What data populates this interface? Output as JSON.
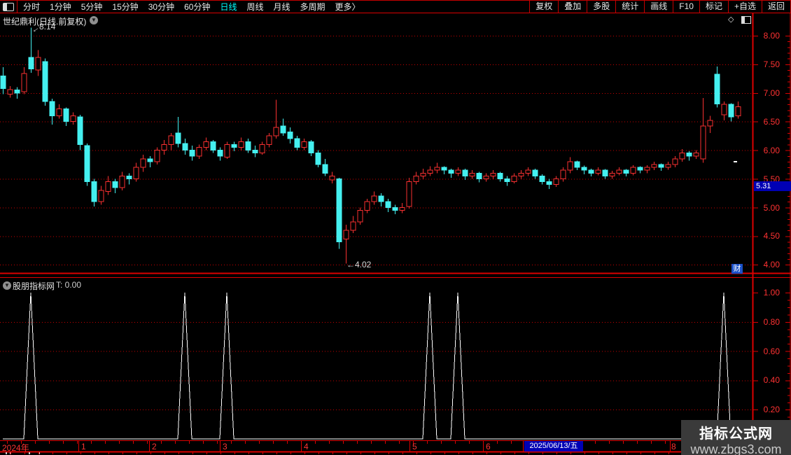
{
  "menubar": {
    "left_items": [
      "分时",
      "1分钟",
      "5分钟",
      "15分钟",
      "30分钟",
      "60分钟",
      "日线",
      "周线",
      "月线",
      "多周期",
      "更多〉"
    ],
    "active_item": "日线",
    "right_items": [
      "复权",
      "叠加",
      "多股",
      "统计",
      "画线",
      "F10",
      "标记",
      "+自选",
      "返回"
    ]
  },
  "chart_header": {
    "title": "世纪鼎利(日线.前复权)"
  },
  "price_axis": {
    "ticks": [
      "8.00",
      "7.50",
      "7.00",
      "6.50",
      "6.00",
      "5.50",
      "5.00",
      "4.50",
      "4.00"
    ],
    "last_price_tag": "5.31"
  },
  "indicator_panel": {
    "name": "股朋指标网",
    "value_label": "T: 0.00",
    "ticks": [
      "1.00",
      "0.80",
      "0.60",
      "0.40",
      "0.20"
    ]
  },
  "date_axis": {
    "labels": [
      "2024年",
      "1",
      "2",
      "3",
      "4",
      "5",
      "6",
      "8"
    ],
    "highlight_date": "2025/06/13/五"
  },
  "annotations": {
    "high": "8.14",
    "low": "4.02"
  },
  "badges": {
    "cai": "财"
  },
  "watermark": {
    "line1": "指标公式网",
    "line2": "www.zbgs3.com"
  },
  "colors": {
    "up": "#f83030",
    "down": "#44f0f0",
    "grid": "#c80000",
    "frame": "#dd0000",
    "label_red": "#ff3232",
    "active_cyan": "#00ffff",
    "tag_blue": "#0000b4",
    "indicator_line": "#ffffff"
  },
  "chart_data": {
    "candlestick": {
      "type": "candlestick",
      "title": "世纪鼎利(日线.前复权)",
      "x_month_labels": [
        "2024年",
        "1",
        "2",
        "3",
        "4",
        "5",
        "6",
        "8"
      ],
      "highlight_date": "2025/06/13/五",
      "ylim": [
        3.85,
        8.3
      ],
      "y_ticks": [
        8.0,
        7.5,
        7.0,
        6.5,
        6.0,
        5.5,
        5.0,
        4.5,
        4.0
      ],
      "high_annotation": 8.14,
      "low_annotation": 4.02,
      "last_price_tag": 5.31,
      "up_color": "#f83030",
      "down_color": "#44f0f0",
      "ohlc": [
        [
          7.3,
          7.45,
          6.98,
          7.08
        ],
        [
          6.98,
          7.12,
          6.92,
          7.06
        ],
        [
          7.05,
          7.1,
          6.9,
          7.0
        ],
        [
          7.02,
          7.45,
          6.98,
          7.34
        ],
        [
          7.62,
          8.14,
          7.35,
          7.42
        ],
        [
          7.4,
          7.75,
          7.3,
          7.62
        ],
        [
          7.55,
          7.6,
          6.78,
          6.85
        ],
        [
          6.85,
          6.9,
          6.45,
          6.6
        ],
        [
          6.6,
          6.8,
          6.55,
          6.72
        ],
        [
          6.72,
          6.75,
          6.42,
          6.5
        ],
        [
          6.5,
          6.66,
          6.45,
          6.6
        ],
        [
          6.58,
          6.62,
          6.0,
          6.1
        ],
        [
          6.08,
          6.12,
          5.38,
          5.45
        ],
        [
          5.45,
          5.5,
          5.02,
          5.1
        ],
        [
          5.1,
          5.38,
          5.05,
          5.3
        ],
        [
          5.28,
          5.55,
          5.22,
          5.45
        ],
        [
          5.45,
          5.5,
          5.25,
          5.35
        ],
        [
          5.35,
          5.62,
          5.3,
          5.55
        ],
        [
          5.55,
          5.6,
          5.4,
          5.5
        ],
        [
          5.5,
          5.78,
          5.45,
          5.7
        ],
        [
          5.7,
          5.92,
          5.62,
          5.85
        ],
        [
          5.85,
          5.9,
          5.7,
          5.8
        ],
        [
          5.8,
          6.05,
          5.75,
          6.0
        ],
        [
          6.0,
          6.18,
          5.92,
          6.1
        ],
        [
          6.1,
          6.3,
          6.0,
          6.25
        ],
        [
          6.3,
          6.58,
          6.05,
          6.12
        ],
        [
          6.12,
          6.2,
          5.92,
          6.0
        ],
        [
          6.0,
          6.08,
          5.82,
          5.9
        ],
        [
          5.9,
          6.1,
          5.85,
          6.05
        ],
        [
          6.05,
          6.22,
          6.0,
          6.15
        ],
        [
          6.15,
          6.18,
          5.95,
          6.0
        ],
        [
          6.0,
          6.05,
          5.82,
          5.9
        ],
        [
          5.88,
          6.15,
          5.85,
          6.1
        ],
        [
          6.1,
          6.15,
          5.98,
          6.05
        ],
        [
          6.05,
          6.22,
          6.0,
          6.15
        ],
        [
          6.15,
          6.2,
          5.95,
          6.0
        ],
        [
          6.0,
          6.08,
          5.88,
          5.95
        ],
        [
          5.95,
          6.15,
          5.92,
          6.1
        ],
        [
          6.1,
          6.3,
          6.05,
          6.25
        ],
        [
          6.25,
          6.88,
          6.2,
          6.4
        ],
        [
          6.42,
          6.55,
          6.25,
          6.3
        ],
        [
          6.32,
          6.4,
          6.12,
          6.2
        ],
        [
          6.2,
          6.25,
          6.0,
          6.05
        ],
        [
          6.05,
          6.2,
          6.0,
          6.15
        ],
        [
          6.15,
          6.18,
          5.9,
          5.95
        ],
        [
          5.95,
          6.0,
          5.7,
          5.75
        ],
        [
          5.75,
          5.85,
          5.55,
          5.6
        ],
        [
          5.48,
          5.62,
          5.42,
          5.55
        ],
        [
          5.5,
          5.52,
          4.28,
          4.4
        ],
        [
          4.45,
          4.7,
          4.02,
          4.6
        ],
        [
          4.6,
          4.85,
          4.55,
          4.75
        ],
        [
          4.75,
          5.0,
          4.7,
          4.95
        ],
        [
          4.95,
          5.15,
          4.9,
          5.1
        ],
        [
          5.1,
          5.28,
          5.05,
          5.2
        ],
        [
          5.2,
          5.25,
          5.02,
          5.1
        ],
        [
          5.1,
          5.15,
          4.92,
          5.0
        ],
        [
          5.0,
          5.05,
          4.88,
          4.95
        ],
        [
          4.95,
          5.08,
          4.9,
          5.0
        ],
        [
          5.02,
          5.52,
          4.98,
          5.45
        ],
        [
          5.45,
          5.62,
          5.4,
          5.55
        ],
        [
          5.55,
          5.68,
          5.5,
          5.6
        ],
        [
          5.6,
          5.72,
          5.55,
          5.65
        ],
        [
          5.65,
          5.78,
          5.6,
          5.7
        ],
        [
          5.7,
          5.72,
          5.58,
          5.65
        ],
        [
          5.65,
          5.68,
          5.52,
          5.6
        ],
        [
          5.6,
          5.7,
          5.55,
          5.65
        ],
        [
          5.65,
          5.68,
          5.48,
          5.55
        ],
        [
          5.55,
          5.65,
          5.5,
          5.6
        ],
        [
          5.6,
          5.62,
          5.44,
          5.5
        ],
        [
          5.5,
          5.6,
          5.45,
          5.55
        ],
        [
          5.55,
          5.65,
          5.5,
          5.6
        ],
        [
          5.6,
          5.62,
          5.45,
          5.5
        ],
        [
          5.5,
          5.55,
          5.38,
          5.45
        ],
        [
          5.45,
          5.6,
          5.42,
          5.55
        ],
        [
          5.55,
          5.65,
          5.5,
          5.6
        ],
        [
          5.6,
          5.7,
          5.55,
          5.65
        ],
        [
          5.65,
          5.68,
          5.5,
          5.55
        ],
        [
          5.55,
          5.58,
          5.4,
          5.45
        ],
        [
          5.45,
          5.5,
          5.32,
          5.4
        ],
        [
          5.4,
          5.55,
          5.36,
          5.5
        ],
        [
          5.5,
          5.7,
          5.45,
          5.65
        ],
        [
          5.65,
          5.88,
          5.6,
          5.8
        ],
        [
          5.8,
          5.82,
          5.65,
          5.7
        ],
        [
          5.7,
          5.73,
          5.58,
          5.65
        ],
        [
          5.65,
          5.68,
          5.54,
          5.6
        ],
        [
          5.6,
          5.7,
          5.56,
          5.65
        ],
        [
          5.65,
          5.67,
          5.5,
          5.55
        ],
        [
          5.55,
          5.64,
          5.5,
          5.6
        ],
        [
          5.6,
          5.7,
          5.56,
          5.65
        ],
        [
          5.65,
          5.67,
          5.54,
          5.6
        ],
        [
          5.6,
          5.74,
          5.56,
          5.7
        ],
        [
          5.7,
          5.72,
          5.6,
          5.65
        ],
        [
          5.65,
          5.74,
          5.6,
          5.7
        ],
        [
          5.7,
          5.8,
          5.65,
          5.75
        ],
        [
          5.75,
          5.77,
          5.64,
          5.7
        ],
        [
          5.7,
          5.8,
          5.66,
          5.75
        ],
        [
          5.75,
          5.9,
          5.7,
          5.85
        ],
        [
          5.85,
          6.02,
          5.8,
          5.95
        ],
        [
          5.95,
          5.98,
          5.82,
          5.9
        ],
        [
          5.9,
          6.0,
          5.85,
          5.95
        ],
        [
          5.85,
          6.91,
          5.78,
          6.42
        ],
        [
          6.42,
          6.6,
          6.3,
          6.52
        ],
        [
          7.33,
          7.46,
          6.75,
          6.81
        ],
        [
          6.62,
          6.85,
          6.52,
          6.8
        ],
        [
          6.8,
          6.82,
          6.5,
          6.58
        ],
        [
          6.6,
          6.85,
          6.55,
          6.76
        ]
      ]
    },
    "indicator": {
      "type": "line",
      "name": "股朋指标网",
      "t_value": 0.0,
      "ylim": [
        0,
        1.05
      ],
      "y_ticks": [
        1.0,
        0.8,
        0.6,
        0.4,
        0.2
      ],
      "length": 106,
      "baseline_value": 0,
      "spike_value": 1,
      "spike_indices": [
        4,
        26,
        32,
        61,
        65,
        103
      ],
      "color": "#ffffff"
    }
  }
}
